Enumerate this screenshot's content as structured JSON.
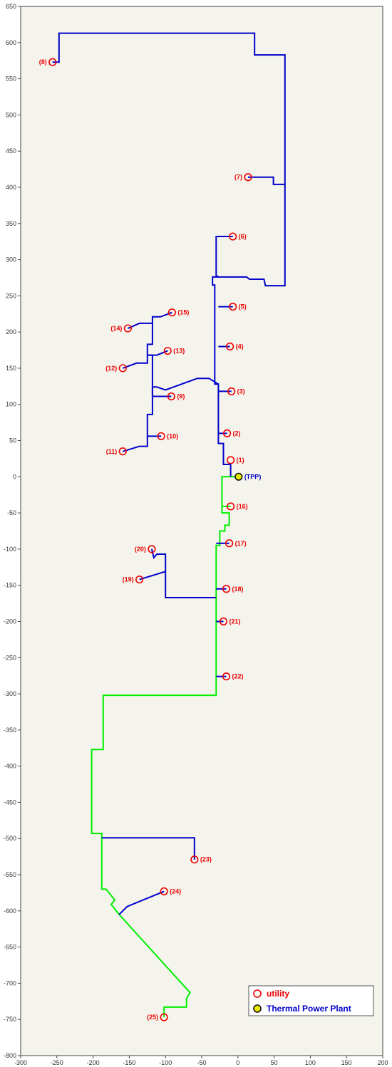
{
  "chart_data": {
    "type": "line",
    "xlim": [
      -300,
      200
    ],
    "ylim": [
      -800,
      650
    ],
    "xticks": [
      -300,
      -250,
      -200,
      -150,
      -100,
      -50,
      0,
      50,
      100,
      150,
      200
    ],
    "yticks": [
      650,
      600,
      550,
      500,
      450,
      400,
      350,
      300,
      250,
      200,
      150,
      100,
      50,
      0,
      -50,
      -100,
      -150,
      -200,
      -250,
      -300,
      -350,
      -400,
      -450,
      -500,
      -550,
      -600,
      -650,
      -700,
      -750,
      -800
    ],
    "grid": false,
    "legend_position": "bottom-right",
    "colors": {
      "plot_background": "#f4f4ec",
      "blue_network": "#0000cc",
      "green_network": "#00ee00",
      "utility_marker": "#ee0000",
      "tpp_fill": "#e8e800",
      "tpp_label": "#0000cc"
    },
    "legend": [
      {
        "label": "utility",
        "marker": "open-circle",
        "color": "#ee0000"
      },
      {
        "label": "Thermal Power Plant",
        "marker": "yellow-filled-circle",
        "color": "#0000cc"
      }
    ],
    "utilities": [
      {
        "label": "(1)",
        "x": -10,
        "y": 23
      },
      {
        "label": "(2)",
        "x": -15,
        "y": 60
      },
      {
        "label": "(3)",
        "x": -9,
        "y": 118
      },
      {
        "label": "(4)",
        "x": -11,
        "y": 180
      },
      {
        "label": "(5)",
        "x": -7,
        "y": 235
      },
      {
        "label": "(6)",
        "x": -7,
        "y": 332
      },
      {
        "label": "(7)",
        "x": 14,
        "y": 414
      },
      {
        "label": "(8)",
        "x": -256,
        "y": 573
      },
      {
        "label": "(9)",
        "x": -92,
        "y": 111
      },
      {
        "label": "(10)",
        "x": -106,
        "y": 56
      },
      {
        "label": "(11)",
        "x": -159,
        "y": 35
      },
      {
        "label": "(12)",
        "x": -159,
        "y": 150
      },
      {
        "label": "(13)",
        "x": -97,
        "y": 174
      },
      {
        "label": "(14)",
        "x": -152,
        "y": 205
      },
      {
        "label": "(15)",
        "x": -91,
        "y": 227
      },
      {
        "label": "(16)",
        "x": -10,
        "y": -41
      },
      {
        "label": "(17)",
        "x": -12,
        "y": -92
      },
      {
        "label": "(18)",
        "x": -16,
        "y": -155
      },
      {
        "label": "(19)",
        "x": -136,
        "y": -142
      },
      {
        "label": "(20)",
        "x": -119,
        "y": -100
      },
      {
        "label": "(21)",
        "x": -20,
        "y": -200
      },
      {
        "label": "(22)",
        "x": -16,
        "y": -276
      },
      {
        "label": "(23)",
        "x": -60,
        "y": -529
      },
      {
        "label": "(24)",
        "x": -102,
        "y": -573
      },
      {
        "label": "(25)",
        "x": -102,
        "y": -747
      }
    ],
    "power_plant": {
      "label": "(TPP)",
      "x": 1,
      "y": 0
    },
    "series": [
      {
        "color": "blue",
        "paths": [
          [
            [
              -10,
              0
            ],
            [
              -10,
              17
            ],
            [
              -20,
              17
            ],
            [
              -20,
              46
            ],
            [
              -27,
              46
            ],
            [
              -27,
              128
            ],
            [
              -32,
              128
            ],
            [
              -32,
              265
            ],
            [
              -35,
              265
            ],
            [
              -35,
              276
            ],
            [
              12,
              276
            ],
            [
              16,
              273
            ],
            [
              36,
              273
            ],
            [
              38,
              264
            ],
            [
              65,
              264
            ],
            [
              65,
              583
            ],
            [
              23,
              583
            ],
            [
              23,
              613
            ],
            [
              -247,
              613
            ],
            [
              -247,
              573
            ],
            [
              -256,
              573
            ]
          ],
          [
            [
              -27,
              277
            ],
            [
              -30,
              277
            ],
            [
              -30,
              332
            ],
            [
              -7,
              332
            ]
          ],
          [
            [
              65,
              404
            ],
            [
              49,
              404
            ],
            [
              49,
              414
            ],
            [
              14,
              414
            ]
          ],
          [
            [
              -27,
              60
            ],
            [
              -15,
              60
            ]
          ],
          [
            [
              -27,
              118
            ],
            [
              -9,
              118
            ]
          ],
          [
            [
              -27,
              180
            ],
            [
              -11,
              180
            ]
          ],
          [
            [
              -27,
              235
            ],
            [
              -7,
              235
            ]
          ],
          [
            [
              -27,
              128
            ],
            [
              -40,
              136
            ],
            [
              -56,
              136
            ],
            [
              -100,
              120
            ],
            [
              -112,
              124
            ],
            [
              -118,
              124
            ],
            [
              -118,
              111
            ],
            [
              -92,
              111
            ]
          ],
          [
            [
              -118,
              124
            ],
            [
              -118,
              86
            ],
            [
              -125,
              86
            ],
            [
              -125,
              56
            ],
            [
              -106,
              56
            ]
          ],
          [
            [
              -125,
              56
            ],
            [
              -125,
              42
            ],
            [
              -136,
              42
            ],
            [
              -159,
              35
            ]
          ],
          [
            [
              -118,
              124
            ],
            [
              -118,
              168
            ],
            [
              -125,
              168
            ],
            [
              -125,
              157
            ],
            [
              -140,
              157
            ],
            [
              -159,
              150
            ]
          ],
          [
            [
              -125,
              168
            ],
            [
              -112,
              168
            ],
            [
              -97,
              174
            ]
          ],
          [
            [
              -125,
              168
            ],
            [
              -125,
              183
            ],
            [
              -118,
              183
            ],
            [
              -118,
              212
            ],
            [
              -136,
              212
            ],
            [
              -152,
              205
            ]
          ],
          [
            [
              -118,
              212
            ],
            [
              -118,
              221
            ],
            [
              -107,
              221
            ],
            [
              -91,
              227
            ]
          ],
          [
            [
              -30,
              -92
            ],
            [
              -12,
              -92
            ]
          ],
          [
            [
              -30,
              -155
            ],
            [
              -16,
              -155
            ]
          ],
          [
            [
              -30,
              -167
            ],
            [
              -100,
              -167
            ],
            [
              -100,
              -131
            ],
            [
              -136,
              -142
            ]
          ],
          [
            [
              -100,
              -131
            ],
            [
              -100,
              -107
            ],
            [
              -112,
              -107
            ],
            [
              -116,
              -112
            ],
            [
              -119,
              -100
            ]
          ],
          [
            [
              -30,
              -200
            ],
            [
              -20,
              -200
            ]
          ],
          [
            [
              -30,
              -276
            ],
            [
              -16,
              -276
            ]
          ],
          [
            [
              -188,
              -499
            ],
            [
              -60,
              -499
            ],
            [
              -60,
              -529
            ]
          ],
          [
            [
              -164,
              -605
            ],
            [
              -153,
              -594
            ],
            [
              -102,
              -573
            ]
          ]
        ]
      },
      {
        "color": "green",
        "paths": [
          [
            [
              1,
              0
            ],
            [
              -22,
              0
            ],
            [
              -22,
              -50
            ],
            [
              -12,
              -50
            ],
            [
              -12,
              -67
            ],
            [
              -18,
              -67
            ],
            [
              -18,
              -75
            ],
            [
              -25,
              -75
            ],
            [
              -25,
              -95
            ],
            [
              -30,
              -95
            ],
            [
              -30,
              -302
            ],
            [
              -186,
              -302
            ],
            [
              -186,
              -377
            ],
            [
              -202,
              -377
            ],
            [
              -202,
              -493
            ],
            [
              -188,
              -493
            ],
            [
              -188,
              -570
            ],
            [
              -182,
              -570
            ],
            [
              -170,
              -585
            ],
            [
              -175,
              -591
            ],
            [
              -164,
              -605
            ],
            [
              -66,
              -713
            ],
            [
              -71,
              -721
            ],
            [
              -71,
              -733
            ],
            [
              -102,
              -733
            ],
            [
              -102,
              -747
            ]
          ],
          [
            [
              -22,
              -41
            ],
            [
              -10,
              -41
            ]
          ]
        ]
      }
    ]
  }
}
